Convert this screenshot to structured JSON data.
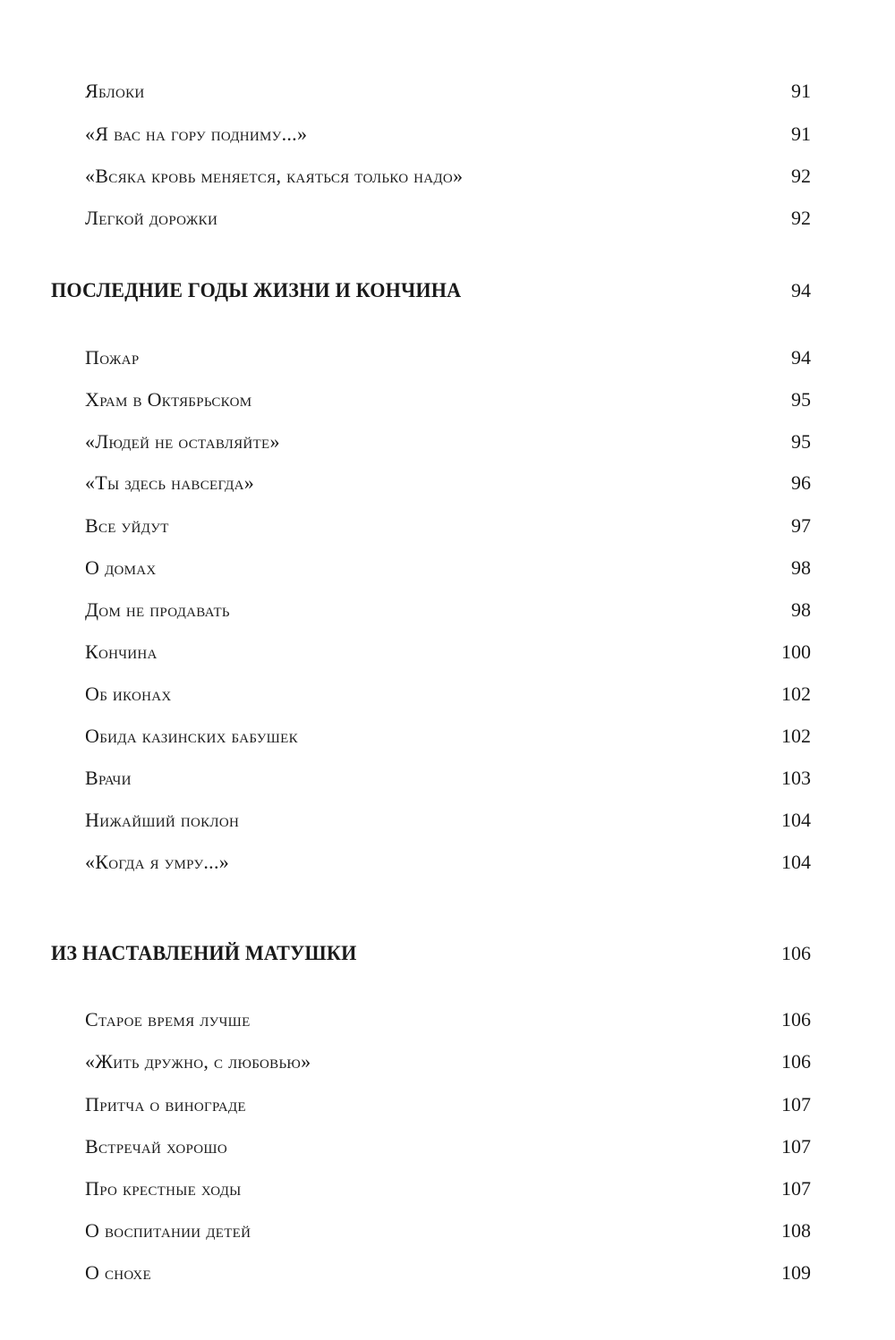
{
  "toc": [
    {
      "type": "entry",
      "title": "Яблоки",
      "page": "91"
    },
    {
      "type": "entry",
      "title": "«Я вас на гору подниму...»",
      "page": "91"
    },
    {
      "type": "entry",
      "title": "«Всяка кровь меняется, каяться только надо»",
      "page": "92"
    },
    {
      "type": "entry",
      "title": "Легкой дорожки",
      "page": "92"
    },
    {
      "type": "section",
      "title": "ПОСЛЕДНИЕ ГОДЫ ЖИЗНИ И КОНЧИНА",
      "page": "94"
    },
    {
      "type": "entry",
      "title": "Пожар",
      "page": "94"
    },
    {
      "type": "entry",
      "title": "Храм в Октябрьском",
      "page": "95"
    },
    {
      "type": "entry",
      "title": "«Людей не оставляйте»",
      "page": "95"
    },
    {
      "type": "entry",
      "title": "«Ты здесь навсегда»",
      "page": "96"
    },
    {
      "type": "entry",
      "title": "Все уйдут",
      "page": "97"
    },
    {
      "type": "entry",
      "title": "О домах",
      "page": "98"
    },
    {
      "type": "entry",
      "title": "Дом не продавать",
      "page": "98"
    },
    {
      "type": "entry",
      "title": "Кончина",
      "page": "100"
    },
    {
      "type": "entry",
      "title": "Об иконах",
      "page": "102"
    },
    {
      "type": "entry",
      "title": "Обида казинских бабушек",
      "page": "102"
    },
    {
      "type": "entry",
      "title": "Врачи",
      "page": "103"
    },
    {
      "type": "entry",
      "title": "Нижайший поклон",
      "page": "104"
    },
    {
      "type": "entry",
      "title": "«Когда я умру...»",
      "page": "104"
    },
    {
      "type": "section",
      "title": "ИЗ НАСТАВЛЕНИЙ МАТУШКИ",
      "page": "106"
    },
    {
      "type": "entry",
      "title": "Старое время лучше",
      "page": "106"
    },
    {
      "type": "entry",
      "title": "«Жить дружно, с любовью»",
      "page": "106"
    },
    {
      "type": "entry",
      "title": "Притча о винограде",
      "page": "107"
    },
    {
      "type": "entry",
      "title": "Встречай хорошо",
      "page": "107"
    },
    {
      "type": "entry",
      "title": "Про крестные ходы",
      "page": "107"
    },
    {
      "type": "entry",
      "title": "О воспитании детей",
      "page": "108"
    },
    {
      "type": "entry",
      "title": "О снохе",
      "page": "109"
    }
  ]
}
